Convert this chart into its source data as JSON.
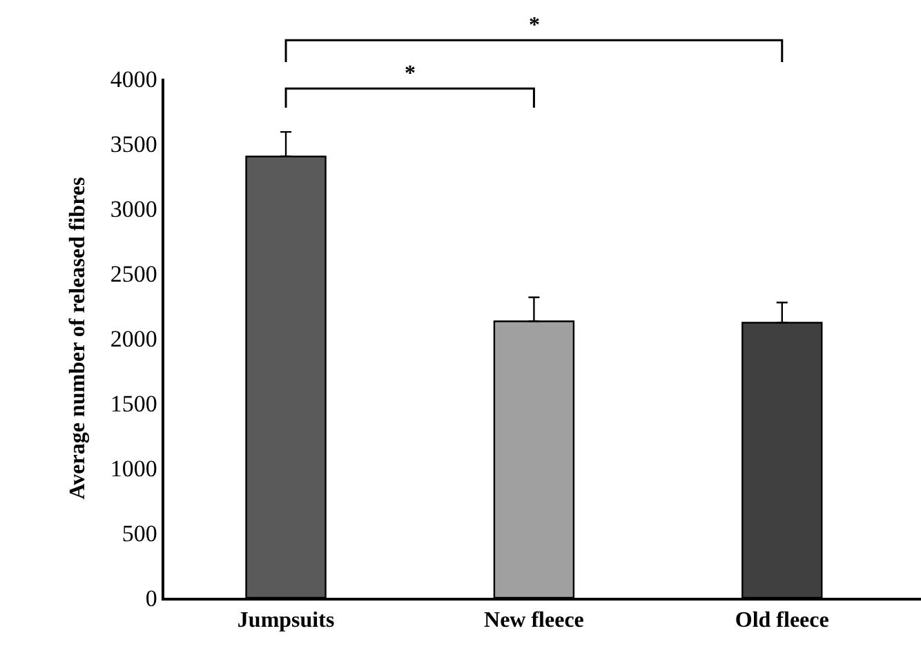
{
  "chart_data": {
    "type": "bar",
    "ylabel": "Average number of released fibres",
    "categories": [
      "Jumpsuits",
      "New fleece",
      "Old fleece"
    ],
    "values": [
      3400,
      2130,
      2120
    ],
    "errors": [
      [
        3400,
        3590
      ],
      [
        2130,
        2315
      ],
      [
        2120,
        2275
      ]
    ],
    "colors": [
      "#5a5a5a",
      "#a0a0a0",
      "#404040"
    ],
    "ylim": [
      0,
      4000
    ],
    "yticks": [
      0,
      500,
      1000,
      1500,
      2000,
      2500,
      3000,
      3500,
      4000
    ],
    "annotations": [
      "*",
      "*"
    ]
  }
}
